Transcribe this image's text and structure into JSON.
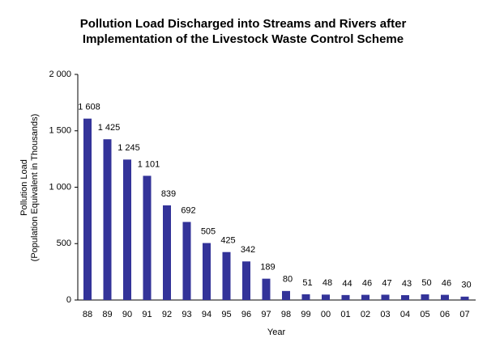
{
  "chart_data": {
    "type": "bar",
    "title": [
      "Pollution Load Discharged into Streams and Rivers after",
      "Implementation of the Livestock Waste Control Scheme"
    ],
    "x_label": "Year",
    "y_label": [
      "Pollution Load",
      "(Population Equivalent in Thousands)"
    ],
    "categories": [
      "88",
      "89",
      "90",
      "91",
      "92",
      "93",
      "94",
      "95",
      "96",
      "97",
      "98",
      "99",
      "00",
      "01",
      "02",
      "03",
      "04",
      "05",
      "06",
      "07"
    ],
    "values": [
      1608,
      1425,
      1245,
      1101,
      839,
      692,
      505,
      425,
      342,
      189,
      80,
      51,
      48,
      44,
      46,
      47,
      43,
      50,
      46,
      30
    ],
    "value_labels": [
      "1 608",
      "1 425",
      "1 245",
      "1 101",
      "839",
      "692",
      "505",
      "425",
      "342",
      "189",
      "80",
      "51",
      "48",
      "44",
      "46",
      "47",
      "43",
      "50",
      "46",
      "30"
    ],
    "color": "#333399",
    "ylim": [
      0,
      2000
    ],
    "yticks": [
      0,
      500,
      {
        "value": 1000,
        "label": "1 000"
      },
      {
        "value": 1500,
        "label": "1 500"
      },
      {
        "value": 2000,
        "label": "2 000"
      }
    ],
    "grid": false
  }
}
